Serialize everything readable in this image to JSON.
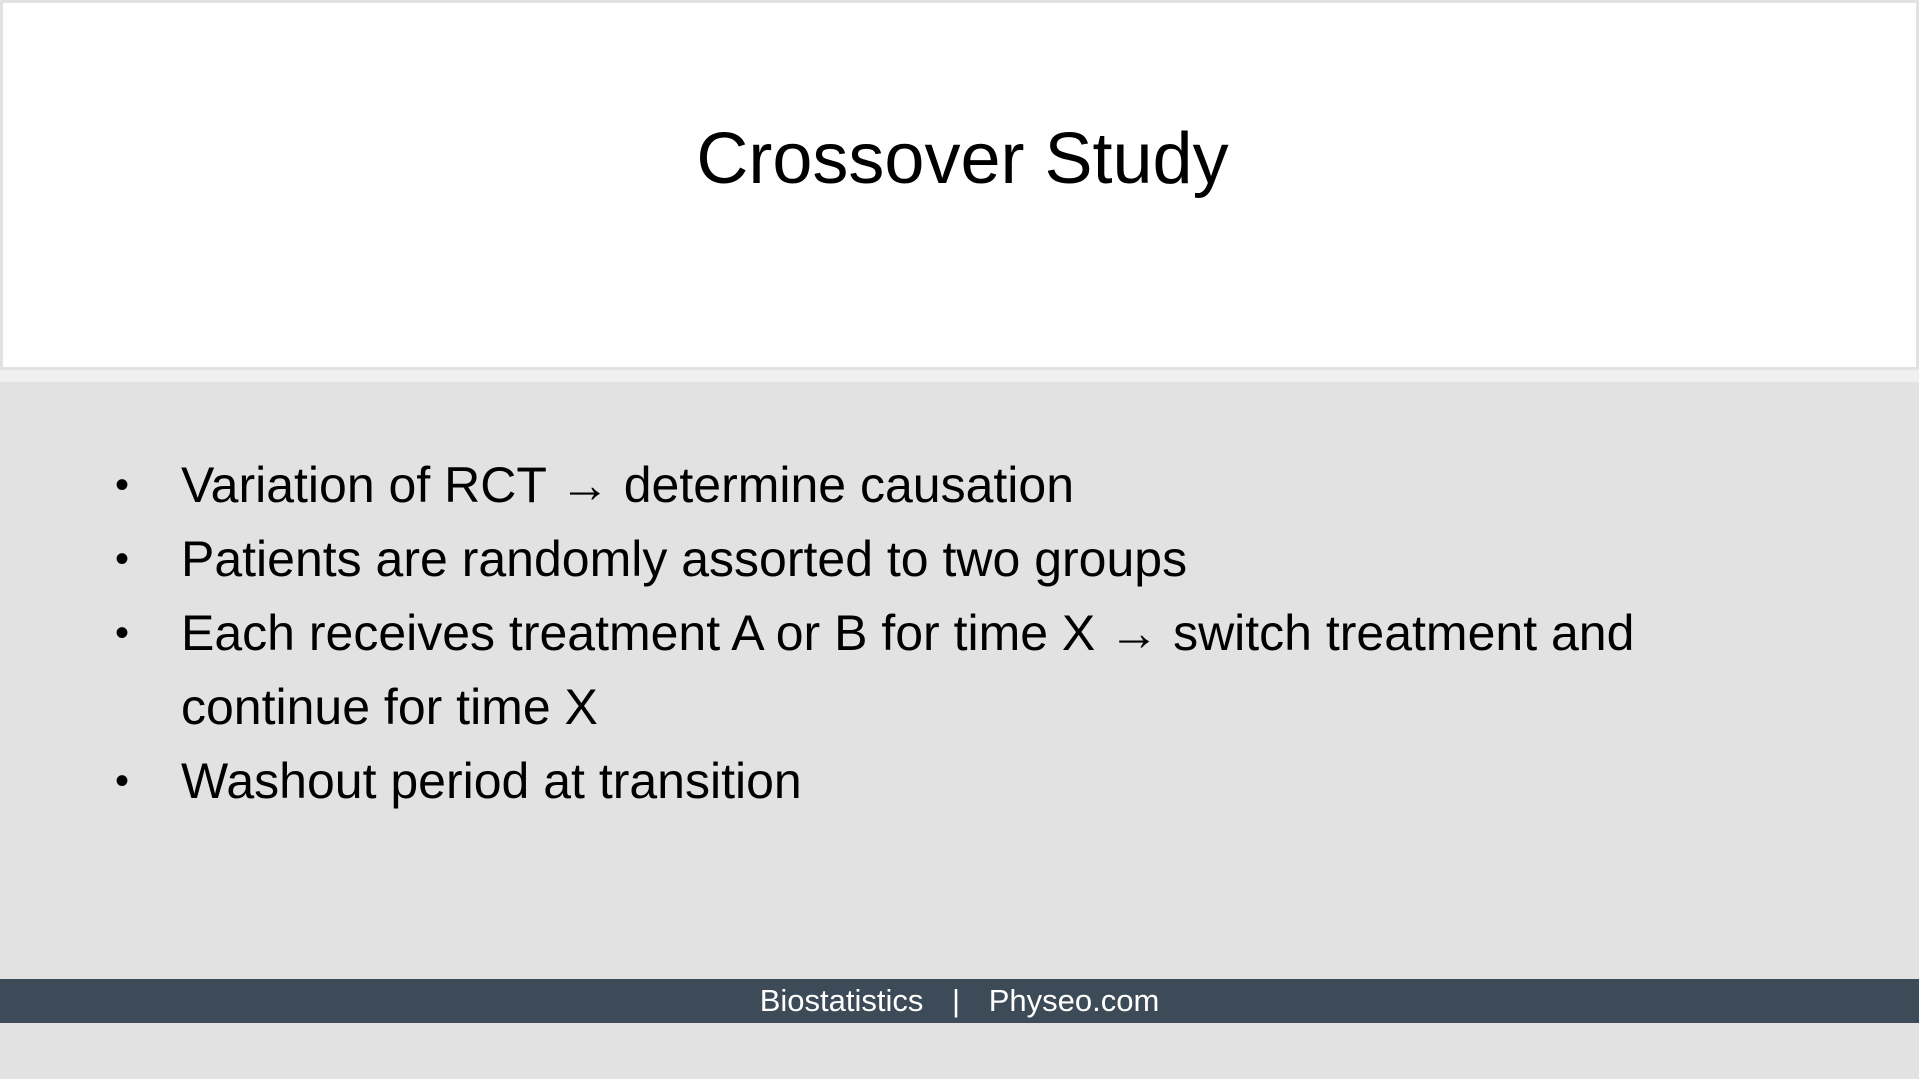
{
  "slide": {
    "title": "Crossover Study",
    "bullets": [
      "Variation of RCT → determine causation",
      "Patients are randomly assorted to two groups",
      "Each receives treatment A or B for time X → switch treatment and continue for time X",
      "Washout period at transition"
    ],
    "footer": {
      "left": "Biostatistics",
      "separator": "|",
      "right": "Physeo.com"
    }
  },
  "colors": {
    "background": "#e2e2e2",
    "title_panel": "#ffffff",
    "footer_bar": "#3d4a57",
    "footer_text": "#ffffff"
  }
}
